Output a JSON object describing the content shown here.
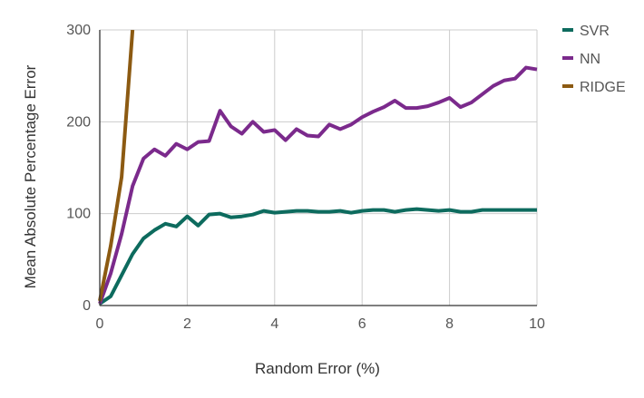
{
  "chart_data": {
    "type": "line",
    "title": "",
    "xlabel": "Random Error (%)",
    "ylabel": "Mean Absolute Percentage Error",
    "xlim": [
      0,
      10
    ],
    "ylim": [
      0,
      300
    ],
    "x_ticks": [
      0,
      2,
      4,
      6,
      8,
      10
    ],
    "y_ticks": [
      0,
      100,
      200,
      300
    ],
    "grid": true,
    "legend_position": "top-right",
    "series": [
      {
        "name": "SVR",
        "color": "#0d6b5e",
        "x": [
          0,
          0.25,
          0.5,
          0.75,
          1.0,
          1.25,
          1.5,
          1.75,
          2.0,
          2.25,
          2.5,
          2.75,
          3.0,
          3.25,
          3.5,
          3.75,
          4.0,
          4.25,
          4.5,
          4.75,
          5.0,
          5.25,
          5.5,
          5.75,
          6.0,
          6.25,
          6.5,
          6.75,
          7.0,
          7.25,
          7.5,
          7.75,
          8.0,
          8.25,
          8.5,
          8.75,
          9.0,
          9.25,
          9.5,
          9.75,
          10.0
        ],
        "y": [
          2,
          10,
          33,
          56,
          73,
          82,
          89,
          86,
          97,
          87,
          99,
          100,
          96,
          97,
          99,
          103,
          101,
          102,
          103,
          103,
          102,
          102,
          103,
          101,
          103,
          104,
          104,
          102,
          104,
          105,
          104,
          103,
          104,
          102,
          102,
          104,
          104,
          104,
          104,
          104,
          104
        ]
      },
      {
        "name": "NN",
        "color": "#7b2a8c",
        "x": [
          0,
          0.25,
          0.5,
          0.75,
          1.0,
          1.25,
          1.5,
          1.75,
          2.0,
          2.25,
          2.5,
          2.75,
          3.0,
          3.25,
          3.5,
          3.75,
          4.0,
          4.25,
          4.5,
          4.75,
          5.0,
          5.25,
          5.5,
          5.75,
          6.0,
          6.25,
          6.5,
          6.75,
          7.0,
          7.25,
          7.5,
          7.75,
          8.0,
          8.25,
          8.5,
          8.75,
          9.0,
          9.25,
          9.5,
          9.75,
          10.0
        ],
        "y": [
          2,
          35,
          78,
          130,
          160,
          170,
          163,
          176,
          170,
          178,
          179,
          212,
          195,
          187,
          200,
          189,
          191,
          180,
          192,
          185,
          184,
          197,
          192,
          197,
          205,
          211,
          216,
          223,
          215,
          215,
          217,
          221,
          226,
          216,
          221,
          230,
          239,
          245,
          247,
          259,
          257
        ]
      },
      {
        "name": "RIDGE",
        "color": "#8c5a12",
        "x": [
          0,
          0.25,
          0.5,
          0.75
        ],
        "y": [
          5,
          65,
          140,
          300
        ]
      }
    ]
  }
}
